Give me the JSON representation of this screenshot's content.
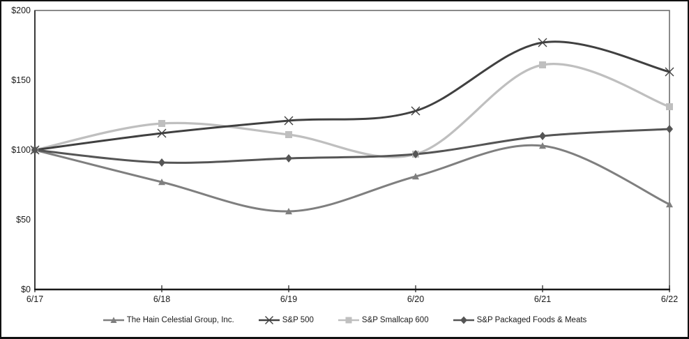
{
  "chart_data": {
    "type": "line",
    "title": "",
    "xlabel": "",
    "ylabel": "",
    "grid": false,
    "legend_position": "bottom",
    "smooth_lines": true,
    "ylim": [
      0,
      200
    ],
    "y_ticks": [
      {
        "label": "$200",
        "value": 200
      },
      {
        "label": "$150",
        "value": 150
      },
      {
        "label": "$100",
        "value": 100
      },
      {
        "label": "$50",
        "value": 50
      },
      {
        "label": "$0",
        "value": 0
      }
    ],
    "categories": [
      "6/17",
      "6/18",
      "6/19",
      "6/20",
      "6/21",
      "6/22"
    ],
    "series": [
      {
        "name": "The Hain Celestial Group, Inc.",
        "marker": "triangle",
        "color": "#7f7f7f",
        "line_width": 3,
        "values": [
          100,
          77,
          56,
          81,
          103,
          61
        ]
      },
      {
        "name": "S&P 500",
        "marker": "x",
        "color": "#404040",
        "line_width": 3,
        "values": [
          100,
          112,
          121,
          128,
          177,
          156
        ]
      },
      {
        "name": "S&P Smallcap 600",
        "marker": "square",
        "color": "#bfbfbf",
        "line_width": 3.25,
        "values": [
          100,
          119,
          111,
          97,
          161,
          131
        ]
      },
      {
        "name": "S&P Packaged Foods & Meats",
        "marker": "diamond",
        "color": "#555555",
        "line_width": 3,
        "values": [
          100,
          91,
          94,
          97,
          110,
          115
        ]
      }
    ],
    "axis_colors": {
      "plot_border": "#6e6e6e",
      "y_axis": "#3a3a3a",
      "x_axis": "#1a1a1a",
      "tick": "#3a3a3a"
    }
  }
}
